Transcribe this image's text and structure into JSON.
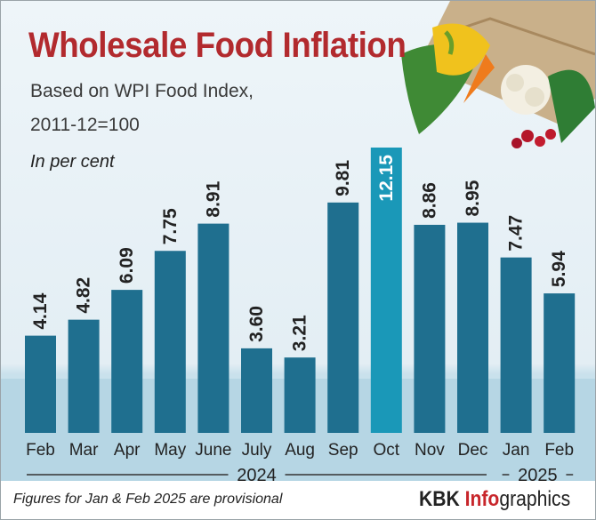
{
  "title": "Wholesale Food Inflation",
  "subtitle_line1": "Based on WPI Food Index,",
  "subtitle_line2": "2011-12=100",
  "unit_note": "In per cent",
  "footnote": "Figures for Jan & Feb 2025 are provisional",
  "credit": {
    "part1": "KBK ",
    "part2": "Info",
    "part3": "graphics"
  },
  "colors": {
    "title": "#b22a2e",
    "bar": "#1f6f8f",
    "bar_highlight": "#1a98b8",
    "credit_accent": "#c8262b"
  },
  "chart_data": {
    "type": "bar",
    "categories": [
      "Feb",
      "Mar",
      "Apr",
      "May",
      "June",
      "July",
      "Aug",
      "Sep",
      "Oct",
      "Nov",
      "Dec",
      "Jan",
      "Feb"
    ],
    "values": [
      4.14,
      4.82,
      6.09,
      7.75,
      8.91,
      3.6,
      3.21,
      9.81,
      12.15,
      8.86,
      8.95,
      7.47,
      5.94
    ],
    "value_labels": [
      "4.14",
      "4.82",
      "6.09",
      "7.75",
      "8.91",
      "3.60",
      "3.21",
      "9.81",
      "12.15",
      "8.86",
      "8.95",
      "7.47",
      "5.94"
    ],
    "highlight_index": 8,
    "year_groups": [
      {
        "label": "2024",
        "start": 0,
        "end": 10
      },
      {
        "label": "2025",
        "start": 11,
        "end": 12
      }
    ],
    "grid": false,
    "ylim": [
      0,
      12.15
    ]
  }
}
